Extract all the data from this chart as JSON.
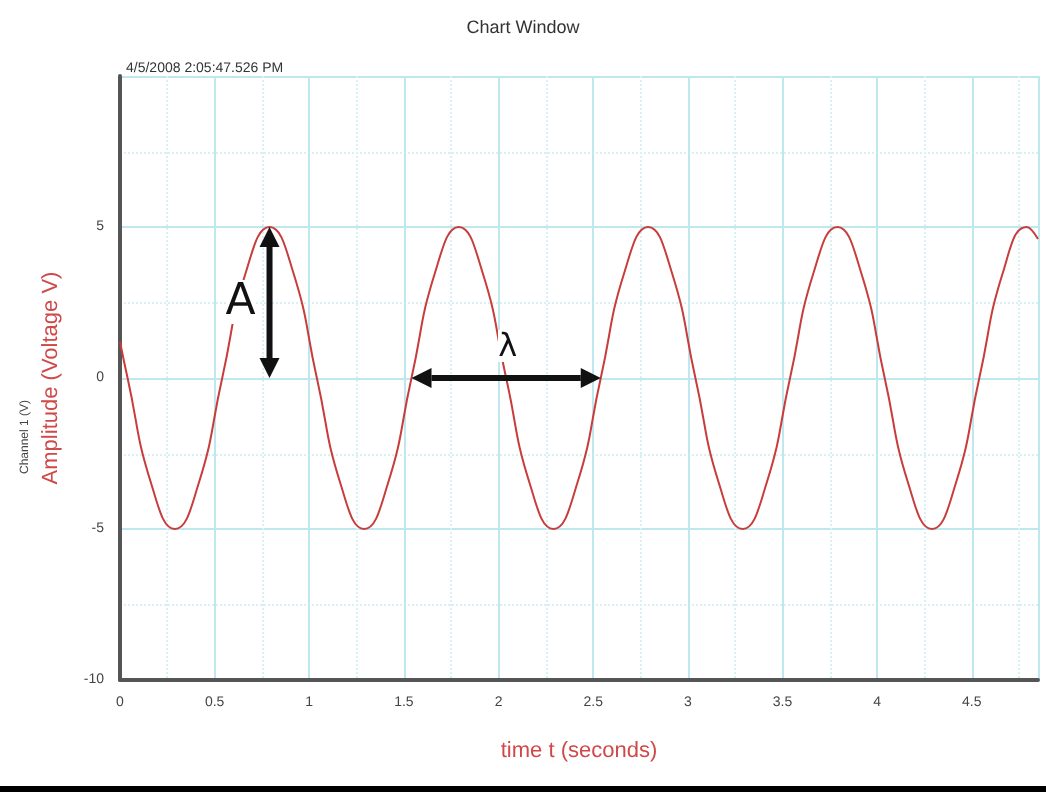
{
  "chart_data": {
    "type": "line",
    "title": "Chart Window",
    "subtitle": "4/5/2008 2:05:47.526 PM",
    "xlabel": "time t (seconds)",
    "ylabel": "Amplitude (Voltage V)",
    "annotations": [
      "Channel 1 (V)",
      "A",
      "λ"
    ],
    "x": [
      0,
      0.04,
      0.165,
      0.29,
      0.415,
      0.54,
      0.665,
      0.79,
      0.915,
      1.04,
      1.165,
      1.29,
      1.415,
      1.54,
      1.665,
      1.79,
      1.915,
      2.04,
      2.165,
      2.29,
      2.415,
      2.54,
      2.665,
      2.79,
      2.915,
      3.04,
      3.165,
      3.29,
      3.415,
      3.54,
      3.665,
      3.79,
      3.915,
      4.04,
      4.165,
      4.29,
      4.415,
      4.54,
      4.665,
      4.79,
      4.85
    ],
    "series": [
      {
        "color": "#c83c3c",
        "values": [
          1.2,
          0,
          -3.5,
          -5,
          -3.5,
          0,
          3.5,
          5,
          3.5,
          0,
          -3.5,
          -5,
          -3.5,
          0,
          3.5,
          5,
          3.5,
          0,
          -3.5,
          -5,
          -3.5,
          0,
          3.5,
          5,
          3.5,
          0,
          -3.5,
          -5,
          -3.5,
          0,
          3.5,
          5,
          3.5,
          0,
          -3.5,
          -5,
          -3.5,
          0,
          3.5,
          5,
          4.6
        ]
      }
    ],
    "xlim": [
      0,
      4.85
    ],
    "xticks": [
      0,
      0.5,
      1,
      1.5,
      2,
      2.5,
      3,
      3.5,
      4,
      4.5
    ],
    "ylim": [
      -10,
      10
    ],
    "yticks": [
      -10,
      -5,
      0,
      5
    ],
    "grid": true,
    "marker": "none",
    "line_style": "solid"
  }
}
